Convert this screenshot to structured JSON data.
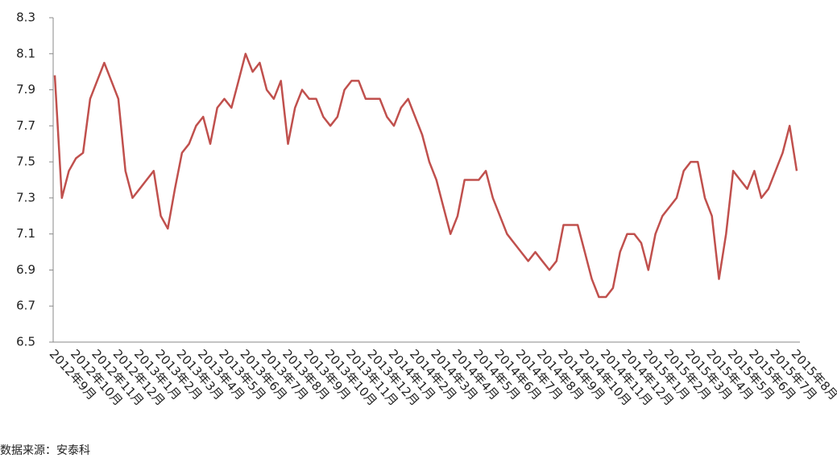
{
  "chart_data": {
    "type": "line",
    "source": "数据来源：安泰科",
    "categories": [
      "2012年9月",
      null,
      null,
      "2012年10月",
      null,
      null,
      "2012年11月",
      null,
      null,
      "2012年12月",
      null,
      null,
      "2013年1月",
      null,
      null,
      "2013年2月",
      null,
      null,
      "2013年3月",
      null,
      null,
      "2013年4月",
      null,
      null,
      "2013年5月",
      null,
      null,
      "2013年6月",
      null,
      null,
      "2013年7月",
      null,
      null,
      "2013年8月",
      null,
      null,
      "2013年9月",
      null,
      null,
      "2013年10月",
      null,
      null,
      "2013年11月",
      null,
      null,
      "2013年12月",
      null,
      null,
      "2014年1月",
      null,
      null,
      "2014年2月",
      null,
      null,
      "2014年3月",
      null,
      null,
      "2014年4月",
      null,
      null,
      "2014年5月",
      null,
      null,
      "2014年6月",
      null,
      null,
      "2014年7月",
      null,
      null,
      "2014年8月",
      null,
      null,
      "2014年9月",
      null,
      null,
      "2014年10月",
      null,
      null,
      "2014年11月",
      null,
      null,
      "2014年12月",
      null,
      null,
      "2015年1月",
      null,
      null,
      "2015年2月",
      null,
      null,
      "2015年3月",
      null,
      null,
      "2015年4月",
      null,
      null,
      "2015年5月",
      null,
      null,
      "2015年6月",
      null,
      null,
      "2015年7月",
      null,
      null,
      "2015年8月"
    ],
    "series": [
      {
        "color": "#c0504d",
        "values": [
          7.98,
          7.3,
          7.45,
          7.52,
          7.55,
          7.85,
          7.95,
          8.05,
          7.95,
          7.85,
          7.45,
          7.3,
          7.35,
          7.4,
          7.45,
          7.2,
          7.13,
          7.35,
          7.55,
          7.6,
          7.7,
          7.75,
          7.6,
          7.8,
          7.85,
          7.8,
          7.95,
          8.1,
          8.0,
          8.05,
          7.9,
          7.85,
          7.95,
          7.6,
          7.8,
          7.9,
          7.85,
          7.85,
          7.75,
          7.7,
          7.75,
          7.9,
          7.95,
          7.95,
          7.85,
          7.85,
          7.85,
          7.75,
          7.7,
          7.8,
          7.85,
          7.75,
          7.65,
          7.5,
          7.4,
          7.25,
          7.1,
          7.2,
          7.4,
          7.4,
          7.4,
          7.45,
          7.3,
          7.2,
          7.1,
          7.05,
          7.0,
          6.95,
          7.0,
          6.95,
          6.9,
          6.95,
          7.15,
          7.15,
          7.15,
          7.0,
          6.85,
          6.75,
          6.75,
          6.8,
          7.0,
          7.1,
          7.1,
          7.05,
          6.9,
          7.1,
          7.2,
          7.25,
          7.3,
          7.45,
          7.5,
          7.5,
          7.3,
          7.2,
          6.85,
          7.1,
          7.45,
          7.4,
          7.35,
          7.45,
          7.3,
          7.35,
          7.45,
          7.55,
          7.7,
          7.45
        ]
      }
    ],
    "ylim": [
      6.5,
      8.3
    ],
    "yticks": [
      6.5,
      6.7,
      6.9,
      7.1,
      7.3,
      7.5,
      7.7,
      7.9,
      8.1,
      8.3
    ],
    "grid": false
  }
}
